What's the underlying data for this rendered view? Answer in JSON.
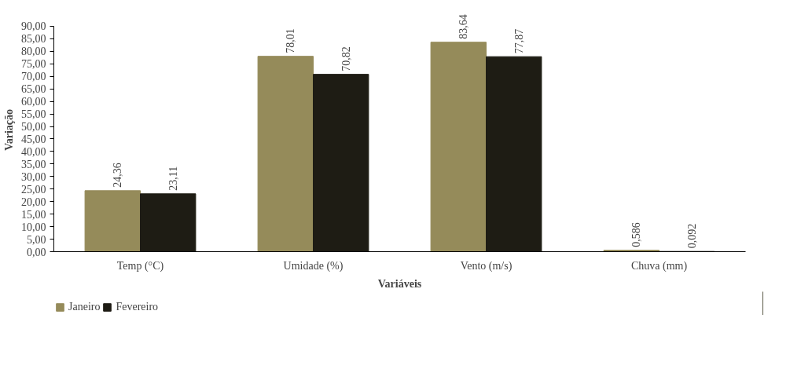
{
  "chart_data": {
    "type": "bar",
    "xlabel": "Variáveis",
    "ylabel": "Variação",
    "categories": [
      "Temp (°C)",
      "Umidade (%)",
      "Vento (m/s)",
      "Chuva (mm)"
    ],
    "series": [
      {
        "name": "Janeiro",
        "color": "#958b5a",
        "values": [
          24.36,
          78.01,
          83.64,
          0.586
        ],
        "value_labels": [
          "24,36",
          "78,01",
          "83,64",
          "0,586"
        ]
      },
      {
        "name": "Fevereiro",
        "color": "#1e1c14",
        "values": [
          23.11,
          70.82,
          77.87,
          0.092
        ],
        "value_labels": [
          "23,11",
          "70,82",
          "77,87",
          "0,092"
        ]
      }
    ],
    "ylim": [
      0,
      90
    ],
    "yticks": [
      {
        "value": 0,
        "label": "0,00"
      },
      {
        "value": 5,
        "label": "5,00"
      },
      {
        "value": 10,
        "label": "10,00"
      },
      {
        "value": 15,
        "label": "15,00"
      },
      {
        "value": 20,
        "label": "20,00"
      },
      {
        "value": 25,
        "label": "25,00"
      },
      {
        "value": 30,
        "label": "30,00"
      },
      {
        "value": 35,
        "label": "35,00"
      },
      {
        "value": 40,
        "label": "40,00"
      },
      {
        "value": 45,
        "label": "45,00"
      },
      {
        "value": 50,
        "label": "50,00"
      },
      {
        "value": 55,
        "label": "55,00"
      },
      {
        "value": 60,
        "label": "60,00"
      },
      {
        "value": 65,
        "label": "65,00"
      },
      {
        "value": 70,
        "label": "70,00"
      },
      {
        "value": 75,
        "label": "75,00"
      },
      {
        "value": 80,
        "label": "80,00"
      },
      {
        "value": 85,
        "label": "85,00"
      },
      {
        "value": 90,
        "label": "90,00"
      }
    ],
    "grid": false,
    "legend": "bottom left"
  }
}
